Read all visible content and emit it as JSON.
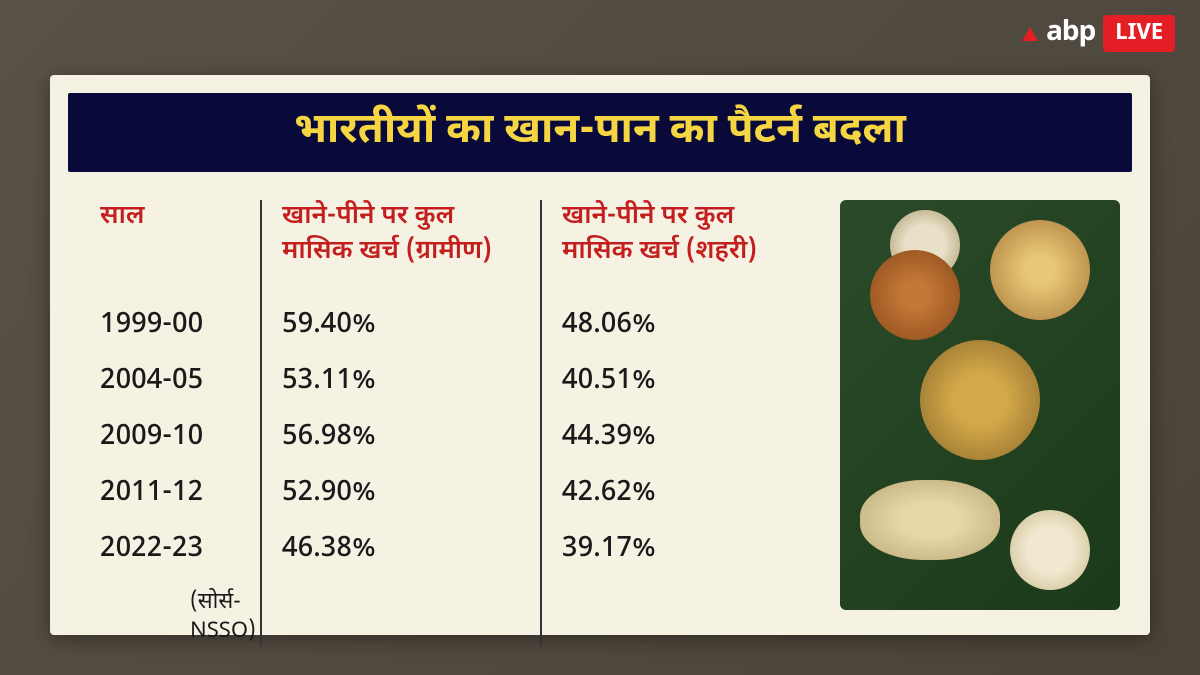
{
  "logo": {
    "brand": "abp",
    "badge": "LIVE"
  },
  "title": "भारतीयों का खान-पान का पैटर्न बदला",
  "table": {
    "columns": [
      "साल",
      "खाने-पीने पर कुल मासिक खर्च (ग्रामीण)",
      "खाने-पीने पर कुल मासिक खर्च (शहरी)"
    ],
    "rows": [
      {
        "year": "1999-00",
        "rural": "59.40%",
        "urban": "48.06%"
      },
      {
        "year": "2004-05",
        "rural": "53.11%",
        "urban": "40.51%"
      },
      {
        "year": "2009-10",
        "rural": "56.98%",
        "urban": "44.39%"
      },
      {
        "year": "2011-12",
        "rural": "52.90%",
        "urban": "42.62%"
      },
      {
        "year": "2022-23",
        "rural": "46.38%",
        "urban": "39.17%"
      }
    ],
    "source": "(सोर्स- NSSO)"
  },
  "styling": {
    "page_bg": "#5a5248",
    "card_bg": "#f5f1e3",
    "title_bg": "#0a0a3a",
    "title_color": "#f5d642",
    "header_color": "#c41e1e",
    "data_color": "#1a1a1a",
    "divider_color": "#333333",
    "title_fontsize": 42,
    "header_fontsize": 26,
    "data_fontsize": 28,
    "source_fontsize": 22,
    "logo_red": "#e31e24"
  }
}
